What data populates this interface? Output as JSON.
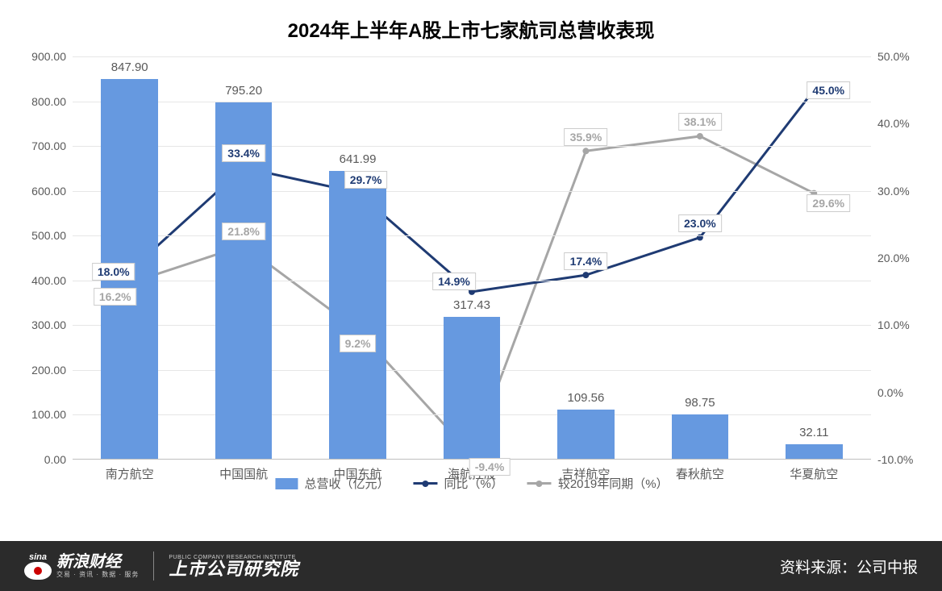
{
  "title": "2024年上半年A股上市七家航司总营收表现",
  "chart": {
    "type": "bar+line-dual-axis",
    "categories": [
      "南方航空",
      "中国国航",
      "中国东航",
      "海航控股",
      "吉祥航空",
      "春秋航空",
      "华夏航空"
    ],
    "bar": {
      "label": "总营收（亿元）",
      "values": [
        847.9,
        795.2,
        641.99,
        317.43,
        109.56,
        98.75,
        32.11
      ],
      "value_labels": [
        "847.90",
        "795.20",
        "641.99",
        "317.43",
        "109.56",
        "98.75",
        "32.11"
      ],
      "color": "#6699e0",
      "width_ratio": 0.5
    },
    "line1": {
      "label": "同比（%）",
      "values": [
        18.0,
        33.4,
        29.7,
        14.9,
        17.4,
        23.0,
        45.0
      ],
      "value_labels": [
        "18.0%",
        "33.4%",
        "29.7%",
        "14.9%",
        "17.4%",
        "23.0%",
        "45.0%"
      ],
      "color": "#1f3b73",
      "line_width": 3,
      "marker": "circle",
      "marker_size": 8
    },
    "line2": {
      "label": "较2019年同期（%）",
      "values": [
        16.2,
        21.8,
        9.2,
        -9.4,
        35.9,
        38.1,
        29.6
      ],
      "value_labels": [
        "16.2%",
        "21.8%",
        "9.2%",
        "-9.4%",
        "35.9%",
        "38.1%",
        "29.6%"
      ],
      "color": "#a6a6a6",
      "line_width": 3,
      "marker": "circle",
      "marker_size": 8
    },
    "y_left": {
      "min": 0,
      "max": 900,
      "step": 100,
      "ticks": [
        "0.00",
        "100.00",
        "200.00",
        "300.00",
        "400.00",
        "500.00",
        "600.00",
        "700.00",
        "800.00",
        "900.00"
      ]
    },
    "y_right": {
      "min": -10,
      "max": 50,
      "step": 10,
      "ticks": [
        "-10.0%",
        "0.0%",
        "10.0%",
        "20.0%",
        "30.0%",
        "40.0%",
        "50.0%"
      ]
    },
    "background_color": "#ffffff",
    "grid_color": "#e6e6e6",
    "axis_color": "#bfbfbf",
    "tick_font_color": "#595959",
    "tick_font_size": 14,
    "title_font_size": 24,
    "title_color": "#000000"
  },
  "footer": {
    "logo1_main": "新浪财经",
    "logo1_sub": "交易 · 资讯 · 数据 · 服务",
    "logo1_brand": "sina",
    "logo2_sub": "PUBLIC COMPANY RESEARCH INSTITUTE",
    "logo2_main": "上市公司研究院",
    "source": "资料来源：公司中报"
  }
}
